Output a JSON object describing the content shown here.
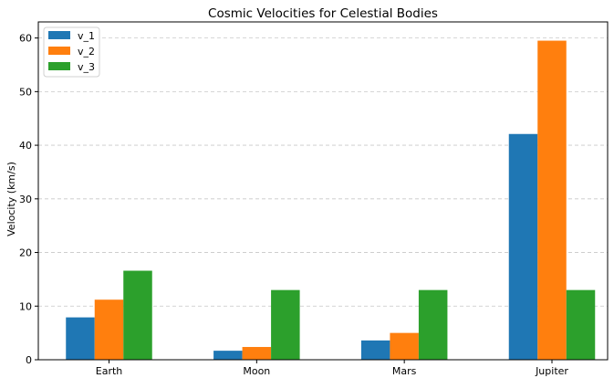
{
  "chart_data": {
    "type": "bar",
    "title": "Cosmic Velocities for Celestial Bodies",
    "xlabel": "",
    "ylabel": "Velocity (km/s)",
    "categories": [
      "Earth",
      "Moon",
      "Mars",
      "Jupiter"
    ],
    "series": [
      {
        "name": "v_1",
        "color": "#1f77b4",
        "values": [
          7.9,
          1.68,
          3.6,
          42.1
        ]
      },
      {
        "name": "v_2",
        "color": "#ff7f0e",
        "values": [
          11.2,
          2.38,
          5.0,
          59.5
        ]
      },
      {
        "name": "v_3",
        "color": "#2ca02c",
        "values": [
          16.6,
          13.0,
          13.0,
          13.0
        ]
      }
    ],
    "ylim": [
      0,
      63
    ],
    "yticks": [
      0,
      10,
      20,
      30,
      40,
      50,
      60
    ],
    "grid": "y-dashed",
    "legend": "top-left"
  }
}
